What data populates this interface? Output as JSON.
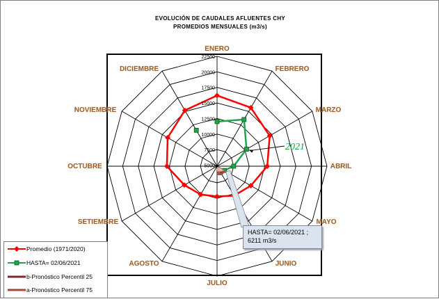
{
  "chart_data": {
    "type": "radar",
    "title": "EVOLUCIÓN DE CAUDALES AFLUENTES CHY",
    "subtitle": "PROMEDIOS MENSUALES (m3/s)",
    "categories": [
      "ENERO",
      "FEBRERO",
      "MARZO",
      "ABRIL",
      "MAYO",
      "JUNIO",
      "JULIO",
      "AGOSTO",
      "SETIEMBRE",
      "OCTUBRE",
      "NOVIEMBRE",
      "DICIEMBRE"
    ],
    "rlim": [
      5000,
      22500
    ],
    "ticks": [
      5000,
      7500,
      10000,
      12500,
      15000,
      17500,
      20000,
      22500
    ],
    "tick_labels": [
      "5000",
      "7500",
      "10000",
      "12500",
      "15000",
      "17500",
      "20000",
      "22500"
    ],
    "grid": true,
    "legend_position": "bottom-left",
    "series": [
      {
        "name": "Promedio (1971/2020)",
        "color": "#ff0000",
        "marker": "diamond",
        "values": [
          16200,
          15700,
          14600,
          12900,
          11100,
          10300,
          9700,
          10100,
          10900,
          12900,
          14000,
          15200
        ]
      },
      {
        "name": "HASTA= 02/06/2021",
        "color": "#21a44a",
        "marker": "square",
        "values": [
          12000,
          13500,
          10300,
          7500,
          6211,
          null,
          null,
          null,
          null,
          null,
          null,
          11500
        ]
      },
      {
        "name": "b-Pronóstico Percentil 25",
        "color": "#7a2a2a",
        "marker": "none",
        "values": [
          null,
          null,
          null,
          null,
          6211,
          5900,
          5700,
          null,
          null,
          null,
          null,
          null
        ]
      },
      {
        "name": "a-Pronóstico Percentil 75",
        "color": "#a5463f",
        "marker": "none",
        "values": [
          null,
          null,
          null,
          null,
          6211,
          6300,
          6100,
          null,
          null,
          null,
          null,
          null
        ]
      }
    ],
    "annotations": [
      {
        "text": "2021",
        "color": "#1a9a3a"
      },
      {
        "text_line1": "HASTA= 02/06/2021 ;",
        "text_line2": "6211 m3/s"
      }
    ]
  }
}
